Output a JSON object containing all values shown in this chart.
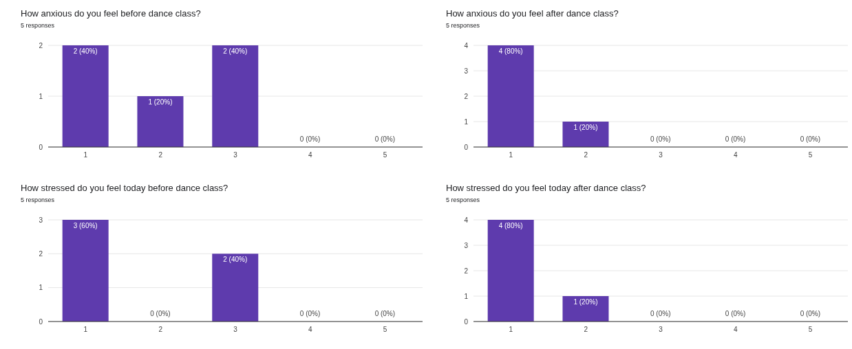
{
  "chart_data": [
    {
      "type": "bar",
      "title": "How anxious do you feel before dance class?",
      "subtitle": "5 responses",
      "categories": [
        "1",
        "2",
        "3",
        "4",
        "5"
      ],
      "values": [
        2,
        1,
        2,
        0,
        0
      ],
      "value_labels": [
        "2 (40%)",
        "1 (20%)",
        "2 (40%)",
        "0 (0%)",
        "0 (0%)"
      ],
      "color": "#5e3bad",
      "ylim": [
        0,
        2
      ],
      "yticks": [
        0,
        1,
        2
      ],
      "grid": "y"
    },
    {
      "type": "bar",
      "title": "How anxious do you feel after dance class?",
      "subtitle": "5 responses",
      "categories": [
        "1",
        "2",
        "3",
        "4",
        "5"
      ],
      "values": [
        4,
        1,
        0,
        0,
        0
      ],
      "value_labels": [
        "4 (80%)",
        "1 (20%)",
        "0 (0%)",
        "0 (0%)",
        "0 (0%)"
      ],
      "color": "#5e3bad",
      "ylim": [
        0,
        4
      ],
      "yticks": [
        0,
        1,
        2,
        3,
        4
      ],
      "grid": "y"
    },
    {
      "type": "bar",
      "title": "How stressed do you feel today before dance class?",
      "subtitle": "5 responses",
      "categories": [
        "1",
        "2",
        "3",
        "4",
        "5"
      ],
      "values": [
        3,
        0,
        2,
        0,
        0
      ],
      "value_labels": [
        "3 (60%)",
        "0 (0%)",
        "2 (40%)",
        "0 (0%)",
        "0 (0%)"
      ],
      "color": "#5e3bad",
      "ylim": [
        0,
        3
      ],
      "yticks": [
        0,
        1,
        2,
        3
      ],
      "grid": "y"
    },
    {
      "type": "bar",
      "title": "How stressed do you feel today after dance class?",
      "subtitle": "5 responses",
      "categories": [
        "1",
        "2",
        "3",
        "4",
        "5"
      ],
      "values": [
        4,
        1,
        0,
        0,
        0
      ],
      "value_labels": [
        "4 (80%)",
        "1 (20%)",
        "0 (0%)",
        "0 (0%)",
        "0 (0%)"
      ],
      "color": "#5e3bad",
      "ylim": [
        0,
        4
      ],
      "yticks": [
        0,
        1,
        2,
        3,
        4
      ],
      "grid": "y"
    }
  ]
}
